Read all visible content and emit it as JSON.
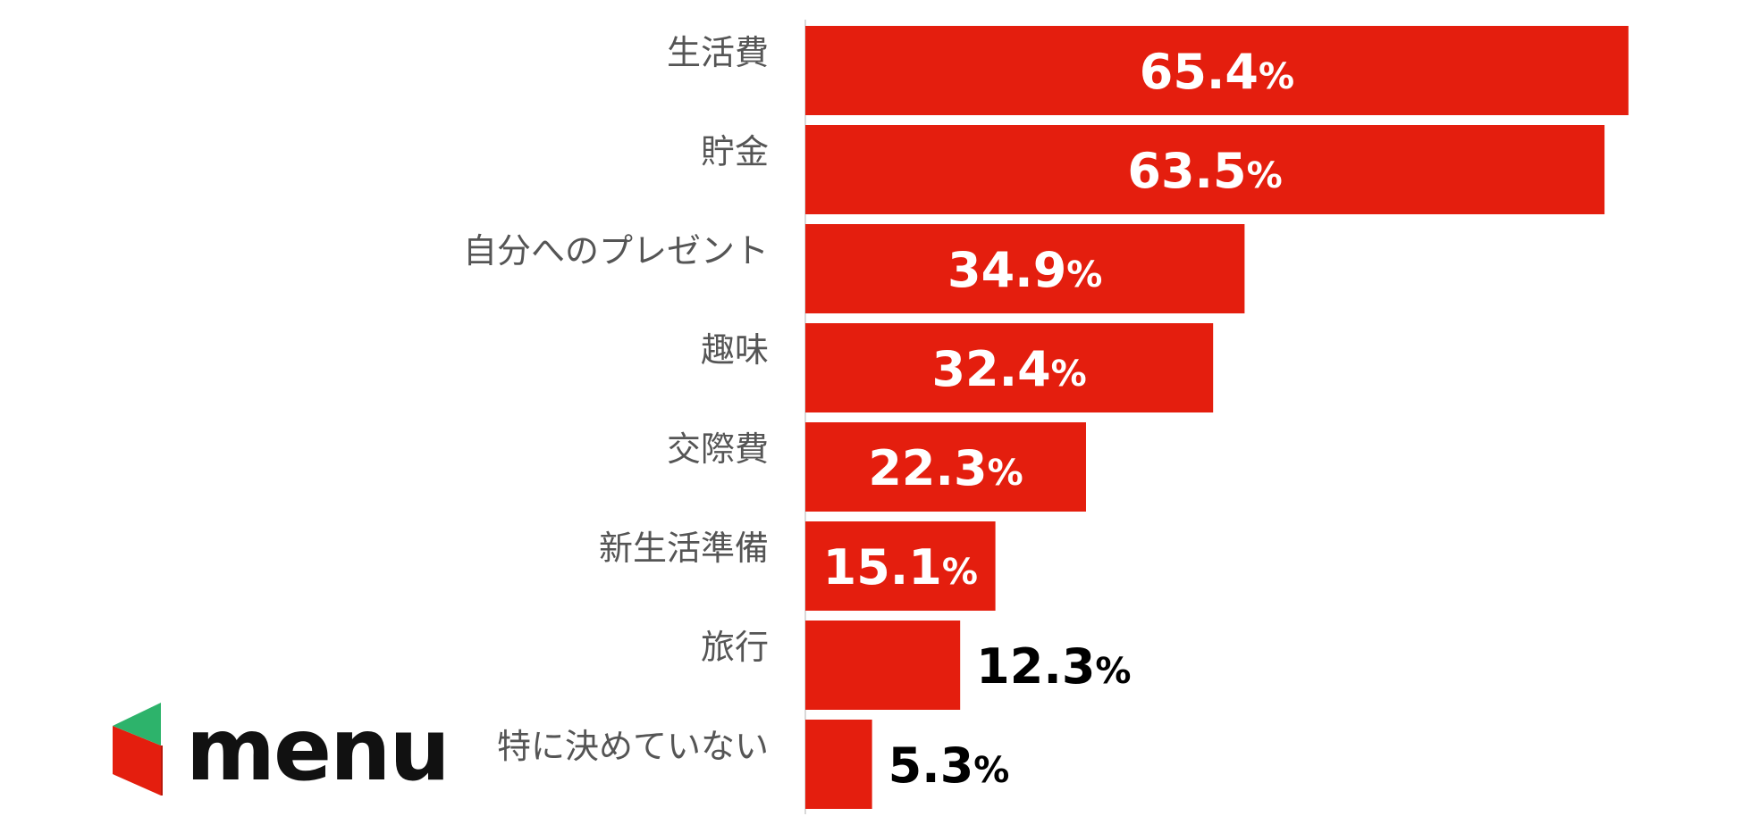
{
  "chart_data": {
    "type": "bar",
    "orientation": "horizontal",
    "categories": [
      "生活費",
      "貯金",
      "自分へのプレゼント",
      "趣味",
      "交際費",
      "新生活準備",
      "旅行",
      "特に決めていない"
    ],
    "values": [
      65.4,
      63.5,
      34.9,
      32.4,
      22.3,
      15.1,
      12.3,
      5.3
    ],
    "value_suffix": "%",
    "xlim": [
      0,
      70
    ],
    "grid": false,
    "legend": "none",
    "colors": {
      "bar": "#e41e0e",
      "label_inside": "#ffffff",
      "label_outside": "#000000",
      "category_text": "#555555",
      "axis_line": "#d9d9d9"
    }
  },
  "logo": {
    "text": "menu",
    "icon": "menu-box-logo-icon",
    "colors": {
      "red": "#e41e0e",
      "green": "#2db36b",
      "text": "#111111"
    }
  }
}
